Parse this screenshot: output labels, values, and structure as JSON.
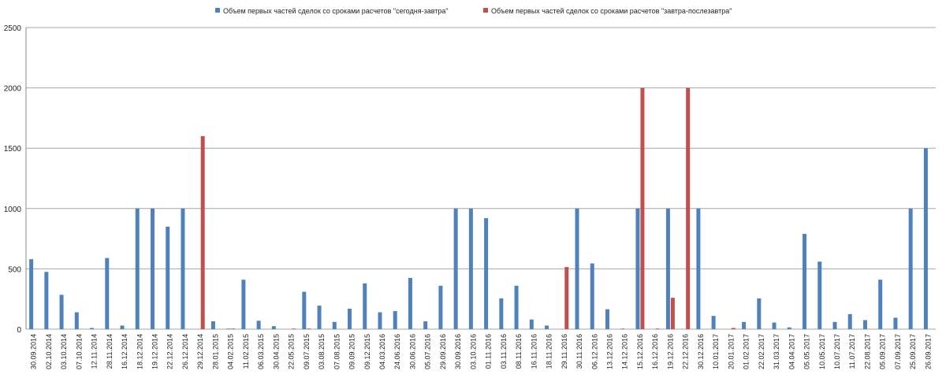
{
  "chart_data": {
    "type": "bar",
    "categories": [
      "30.09.2014",
      "02.10.2014",
      "03.10.2014",
      "07.10.2014",
      "12.11.2014",
      "28.11.2014",
      "16.12.2014",
      "18.12.2014",
      "19.12.2014",
      "22.12.2014",
      "26.12.2014",
      "29.12.2014",
      "28.01.2015",
      "04.02.2015",
      "11.02.2015",
      "06.03.2015",
      "30.04.2015",
      "22.05.2015",
      "09.07.2015",
      "03.08.2015",
      "07.08.2015",
      "09.09.2015",
      "09.12.2015",
      "04.03.2016",
      "24.06.2016",
      "30.06.2016",
      "05.07.2016",
      "29.09.2016",
      "30.09.2016",
      "03.10.2016",
      "01.11.2016",
      "03.11.2016",
      "08.11.2016",
      "16.11.2016",
      "18.11.2016",
      "29.11.2016",
      "30.11.2016",
      "06.12.2016",
      "13.12.2016",
      "14.12.2016",
      "15.12.2016",
      "16.12.2016",
      "19.12.2016",
      "22.12.2016",
      "30.12.2016",
      "10.01.2017",
      "20.01.2017",
      "01.02.2017",
      "22.02.2017",
      "31.03.2017",
      "04.04.2017",
      "05.05.2017",
      "10.05.2017",
      "10.07.2017",
      "11.07.2017",
      "22.08.2017",
      "05.09.2017",
      "07.09.2017",
      "25.09.2017",
      "26.09.2017"
    ],
    "series": [
      {
        "name": "Объем первых частей сделок со сроками расчетов \"сегодня-завтра\"",
        "color": "#4f81bd",
        "values": [
          580,
          475,
          285,
          140,
          10,
          590,
          30,
          1000,
          1000,
          850,
          1000,
          0,
          65,
          5,
          410,
          70,
          25,
          0,
          310,
          195,
          60,
          170,
          380,
          140,
          150,
          425,
          65,
          360,
          1000,
          1000,
          920,
          255,
          360,
          80,
          30,
          0,
          1000,
          545,
          165,
          5,
          1000,
          0,
          1000,
          0,
          1000,
          110,
          0,
          60,
          255,
          55,
          15,
          790,
          560,
          60,
          125,
          75,
          410,
          95,
          1000,
          1500
        ]
      },
      {
        "name": "Объем первых частей сделок со сроками расчетов \"завтра-послезавтра\"",
        "color": "#c0504d",
        "values": [
          0,
          0,
          0,
          0,
          0,
          0,
          0,
          0,
          0,
          0,
          0,
          1600,
          0,
          5,
          0,
          0,
          0,
          5,
          5,
          0,
          0,
          0,
          0,
          0,
          0,
          0,
          0,
          0,
          0,
          0,
          0,
          0,
          0,
          0,
          0,
          515,
          0,
          0,
          0,
          0,
          2000,
          5,
          260,
          2000,
          0,
          0,
          10,
          0,
          0,
          0,
          0,
          0,
          0,
          0,
          0,
          0,
          0,
          0,
          0,
          0
        ]
      }
    ],
    "ylim": [
      0,
      2500
    ],
    "yticks": [
      0,
      500,
      1000,
      1500,
      2000,
      2500
    ],
    "grid": true,
    "legend": "top"
  }
}
